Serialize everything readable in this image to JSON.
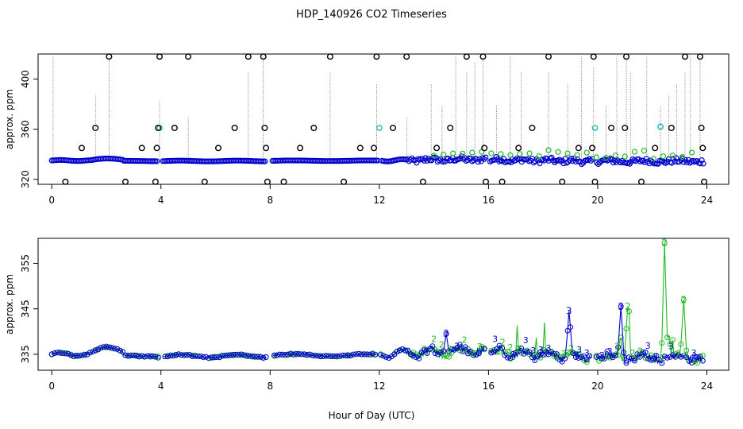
{
  "title": "HDP_140926  CO2 Timeseries",
  "xlabel": "Hour of Day (UTC)",
  "colors": {
    "black": "#000000",
    "blue": "#0000cc",
    "cyan": "#22bbbb",
    "green": "#22bb22"
  },
  "chart_data": [
    {
      "type": "scatter",
      "ylabel": "approx. ppm",
      "xlim": [
        -0.5,
        24.8
      ],
      "ylim": [
        316,
        420
      ],
      "x_ticks": [
        0,
        4,
        8,
        12,
        16,
        20,
        24
      ],
      "x_tick_labels": [
        "0",
        "4",
        "8",
        "12",
        "16",
        "20",
        "24"
      ],
      "y_ticks": [
        320,
        360,
        400
      ],
      "y_tick_labels": [
        "320",
        "360",
        "400"
      ],
      "series": [
        {
          "color": "black",
          "note_points": [
            [
              0.5,
              318
            ],
            [
              1.1,
              345
            ],
            [
              1.6,
              361
            ],
            [
              2.1,
              418
            ],
            [
              2.7,
              318
            ],
            [
              3.3,
              345
            ],
            [
              3.8,
              318
            ],
            [
              3.85,
              345
            ],
            [
              3.9,
              361
            ],
            [
              3.95,
              418
            ],
            [
              4.5,
              361
            ],
            [
              5.0,
              418
            ],
            [
              5.6,
              318
            ],
            [
              6.1,
              345
            ],
            [
              6.7,
              361
            ],
            [
              7.2,
              418
            ],
            [
              7.75,
              418
            ],
            [
              7.8,
              361
            ],
            [
              7.85,
              345
            ],
            [
              7.9,
              318
            ],
            [
              8.5,
              318
            ],
            [
              9.1,
              345
            ],
            [
              9.6,
              361
            ],
            [
              10.2,
              418
            ],
            [
              10.7,
              318
            ],
            [
              11.3,
              345
            ],
            [
              11.8,
              345
            ],
            [
              11.9,
              418
            ],
            [
              12.5,
              361
            ],
            [
              13.0,
              418
            ],
            [
              13.6,
              318
            ],
            [
              14.1,
              345
            ],
            [
              14.6,
              361
            ],
            [
              15.2,
              418
            ],
            [
              15.8,
              418
            ],
            [
              15.85,
              345
            ],
            [
              15.9,
              318
            ],
            [
              16.5,
              318
            ],
            [
              17.1,
              345
            ],
            [
              17.6,
              361
            ],
            [
              18.2,
              418
            ],
            [
              18.7,
              318
            ],
            [
              19.3,
              345
            ],
            [
              19.8,
              345
            ],
            [
              19.85,
              418
            ],
            [
              19.9,
              318
            ],
            [
              20.5,
              361
            ],
            [
              21.0,
              361
            ],
            [
              21.05,
              418
            ],
            [
              21.6,
              318
            ],
            [
              22.1,
              345
            ],
            [
              22.7,
              361
            ],
            [
              23.2,
              418
            ],
            [
              23.75,
              418
            ],
            [
              23.8,
              361
            ],
            [
              23.85,
              345
            ],
            [
              23.9,
              318
            ]
          ]
        }
      ]
    },
    {
      "type": "line",
      "ylabel": "approx. ppm",
      "xlim": [
        -0.5,
        24.8
      ],
      "ylim": [
        331.5,
        360.5
      ],
      "x_ticks": [
        0,
        4,
        8,
        12,
        16,
        20,
        24
      ],
      "x_tick_labels": [
        "0",
        "4",
        "8",
        "12",
        "16",
        "20",
        "24"
      ],
      "y_ticks": [
        335,
        345,
        355
      ],
      "y_tick_labels": [
        "335",
        "345",
        "355"
      ],
      "series": [
        {
          "color": "blue",
          "symbol": "3"
        },
        {
          "color": "green",
          "symbol": "2"
        }
      ],
      "peaks": [
        {
          "x": 14.45,
          "y": 339.5,
          "series": "blue"
        },
        {
          "x": 18.95,
          "y": 344.5,
          "series": "blue"
        },
        {
          "x": 20.85,
          "y": 345.5,
          "series": "blue"
        },
        {
          "x": 21.1,
          "y": 345.5,
          "series": "green"
        },
        {
          "x": 22.45,
          "y": 359.5,
          "series": "green"
        },
        {
          "x": 23.15,
          "y": 347.0,
          "series": "green"
        }
      ]
    }
  ]
}
